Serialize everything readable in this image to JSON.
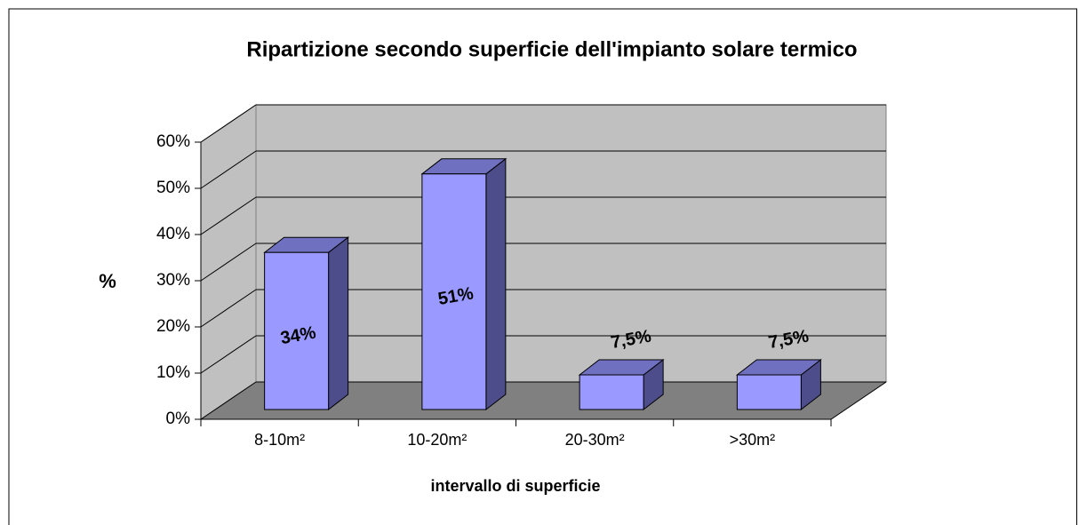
{
  "chart_data": {
    "type": "bar3d",
    "title": "Ripartizione secondo superficie dell'impianto solare termico",
    "categories": [
      "8-10m²",
      "10-20m²",
      "20-30m²",
      ">30m²"
    ],
    "values": [
      34,
      51,
      7.5,
      7.5
    ],
    "value_labels": [
      "34%",
      "51%",
      "7,5%",
      "7,5%"
    ],
    "color": "#9999ff",
    "ylabel": "%",
    "xlabel": "intervallo di superficie",
    "ylim": [
      0,
      60
    ],
    "yticks": [
      {
        "value": 0,
        "label": "0%"
      },
      {
        "value": 10,
        "label": "10%"
      },
      {
        "value": 20,
        "label": "20%"
      },
      {
        "value": 30,
        "label": "30%"
      },
      {
        "value": 40,
        "label": "40%"
      },
      {
        "value": 50,
        "label": "50%"
      },
      {
        "value": 60,
        "label": "60%"
      }
    ],
    "grid": true
  }
}
